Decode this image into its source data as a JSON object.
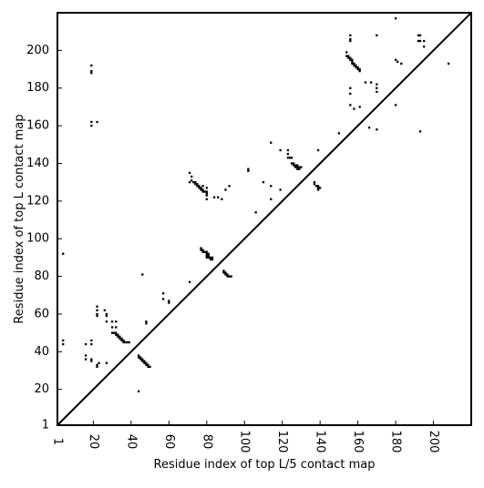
{
  "chart_data": {
    "type": "scatter",
    "title": "",
    "xlabel": "Residue index of top L/5 contact map",
    "ylabel": "Residue index of top L contact map",
    "xlim": [
      1,
      220
    ],
    "ylim": [
      1,
      220
    ],
    "xticks": [
      1,
      20,
      40,
      60,
      80,
      100,
      120,
      140,
      160,
      180,
      200
    ],
    "yticks": [
      1,
      20,
      40,
      60,
      80,
      100,
      120,
      140,
      160,
      180,
      200
    ],
    "grid": false,
    "diagonal_line": true,
    "marker": "square",
    "color": "#000000",
    "points": [
      [
        4,
        92
      ],
      [
        4,
        46
      ],
      [
        4,
        44
      ],
      [
        46,
        81
      ],
      [
        48,
        56
      ],
      [
        48,
        55
      ],
      [
        44,
        19
      ],
      [
        16,
        44
      ],
      [
        16,
        38
      ],
      [
        16,
        36
      ],
      [
        19,
        46
      ],
      [
        19,
        44
      ],
      [
        19,
        36
      ],
      [
        19,
        35
      ],
      [
        22,
        33
      ],
      [
        22,
        32
      ],
      [
        23,
        34
      ],
      [
        27,
        34
      ],
      [
        22,
        64
      ],
      [
        22,
        62
      ],
      [
        22,
        60
      ],
      [
        22,
        59
      ],
      [
        26,
        62
      ],
      [
        27,
        60
      ],
      [
        27,
        59
      ],
      [
        27,
        56
      ],
      [
        30,
        56
      ],
      [
        30,
        53
      ],
      [
        32,
        56
      ],
      [
        32,
        53
      ],
      [
        30,
        50
      ],
      [
        31,
        50
      ],
      [
        32,
        50
      ],
      [
        32,
        49
      ],
      [
        33,
        49
      ],
      [
        33,
        48
      ],
      [
        34,
        48
      ],
      [
        34,
        47
      ],
      [
        35,
        47
      ],
      [
        35,
        46
      ],
      [
        36,
        46
      ],
      [
        36,
        45
      ],
      [
        37,
        45
      ],
      [
        38,
        45
      ],
      [
        39,
        45
      ],
      [
        44,
        38
      ],
      [
        44,
        37
      ],
      [
        45,
        37
      ],
      [
        45,
        36
      ],
      [
        46,
        36
      ],
      [
        46,
        35
      ],
      [
        47,
        35
      ],
      [
        47,
        34
      ],
      [
        48,
        34
      ],
      [
        48,
        33
      ],
      [
        49,
        33
      ],
      [
        49,
        32
      ],
      [
        50,
        32
      ],
      [
        57,
        71
      ],
      [
        57,
        68
      ],
      [
        60,
        67
      ],
      [
        60,
        66
      ],
      [
        19,
        192
      ],
      [
        19,
        189
      ],
      [
        19,
        188
      ],
      [
        19,
        162
      ],
      [
        19,
        160
      ],
      [
        22,
        162
      ],
      [
        71,
        77
      ],
      [
        71,
        135
      ],
      [
        72,
        133
      ],
      [
        72,
        131
      ],
      [
        73,
        130
      ],
      [
        71,
        130
      ],
      [
        74,
        130
      ],
      [
        74,
        129
      ],
      [
        75,
        129
      ],
      [
        75,
        128
      ],
      [
        76,
        128
      ],
      [
        76,
        127
      ],
      [
        77,
        127
      ],
      [
        77,
        126
      ],
      [
        78,
        126
      ],
      [
        78,
        125
      ],
      [
        79,
        125
      ],
      [
        80,
        125
      ],
      [
        80,
        124
      ],
      [
        80,
        123
      ],
      [
        80,
        121
      ],
      [
        80,
        127
      ],
      [
        78,
        128
      ],
      [
        84,
        122
      ],
      [
        86,
        122
      ],
      [
        88,
        121
      ],
      [
        90,
        126
      ],
      [
        92,
        128
      ],
      [
        77,
        95
      ],
      [
        77,
        94
      ],
      [
        78,
        94
      ],
      [
        78,
        93
      ],
      [
        79,
        93
      ],
      [
        80,
        93
      ],
      [
        80,
        92
      ],
      [
        81,
        92
      ],
      [
        81,
        91
      ],
      [
        80,
        91
      ],
      [
        80,
        90
      ],
      [
        81,
        90
      ],
      [
        82,
        90
      ],
      [
        82,
        89
      ],
      [
        83,
        89
      ],
      [
        83,
        90
      ],
      [
        89,
        83
      ],
      [
        89,
        82
      ],
      [
        90,
        82
      ],
      [
        90,
        81
      ],
      [
        91,
        81
      ],
      [
        91,
        80
      ],
      [
        92,
        80
      ],
      [
        93,
        80
      ],
      [
        102,
        137
      ],
      [
        102,
        136
      ],
      [
        106,
        114
      ],
      [
        110,
        130
      ],
      [
        114,
        121
      ],
      [
        114,
        128
      ],
      [
        114,
        151
      ],
      [
        119,
        126
      ],
      [
        119,
        147
      ],
      [
        123,
        147
      ],
      [
        123,
        145
      ],
      [
        123,
        143
      ],
      [
        124,
        143
      ],
      [
        125,
        143
      ],
      [
        125,
        140
      ],
      [
        126,
        140
      ],
      [
        126,
        139
      ],
      [
        127,
        139
      ],
      [
        128,
        139
      ],
      [
        127,
        138
      ],
      [
        128,
        138
      ],
      [
        128,
        137
      ],
      [
        129,
        137
      ],
      [
        129,
        138
      ],
      [
        130,
        138
      ],
      [
        137,
        130
      ],
      [
        137,
        129
      ],
      [
        138,
        128
      ],
      [
        139,
        128
      ],
      [
        139,
        127
      ],
      [
        140,
        127
      ],
      [
        139,
        126
      ],
      [
        139,
        147
      ],
      [
        150,
        156
      ],
      [
        154,
        199
      ],
      [
        154,
        197
      ],
      [
        155,
        197
      ],
      [
        155,
        196
      ],
      [
        156,
        196
      ],
      [
        156,
        195
      ],
      [
        157,
        195
      ],
      [
        157,
        194
      ],
      [
        157,
        193
      ],
      [
        158,
        193
      ],
      [
        158,
        192
      ],
      [
        159,
        192
      ],
      [
        159,
        191
      ],
      [
        160,
        191
      ],
      [
        160,
        190
      ],
      [
        161,
        190
      ],
      [
        161,
        189
      ],
      [
        156,
        208
      ],
      [
        156,
        206
      ],
      [
        156,
        205
      ],
      [
        156,
        180
      ],
      [
        156,
        177
      ],
      [
        156,
        171
      ],
      [
        158,
        169
      ],
      [
        161,
        170
      ],
      [
        164,
        183
      ],
      [
        167,
        183
      ],
      [
        166,
        159
      ],
      [
        170,
        182
      ],
      [
        170,
        180
      ],
      [
        170,
        178
      ],
      [
        170,
        158
      ],
      [
        170,
        208
      ],
      [
        180,
        217
      ],
      [
        180,
        195
      ],
      [
        181,
        194
      ],
      [
        183,
        193
      ],
      [
        180,
        171
      ],
      [
        192,
        208
      ],
      [
        193,
        208
      ],
      [
        192,
        205
      ],
      [
        193,
        205
      ],
      [
        195,
        205
      ],
      [
        195,
        202
      ],
      [
        193,
        157
      ],
      [
        208,
        193
      ]
    ]
  }
}
